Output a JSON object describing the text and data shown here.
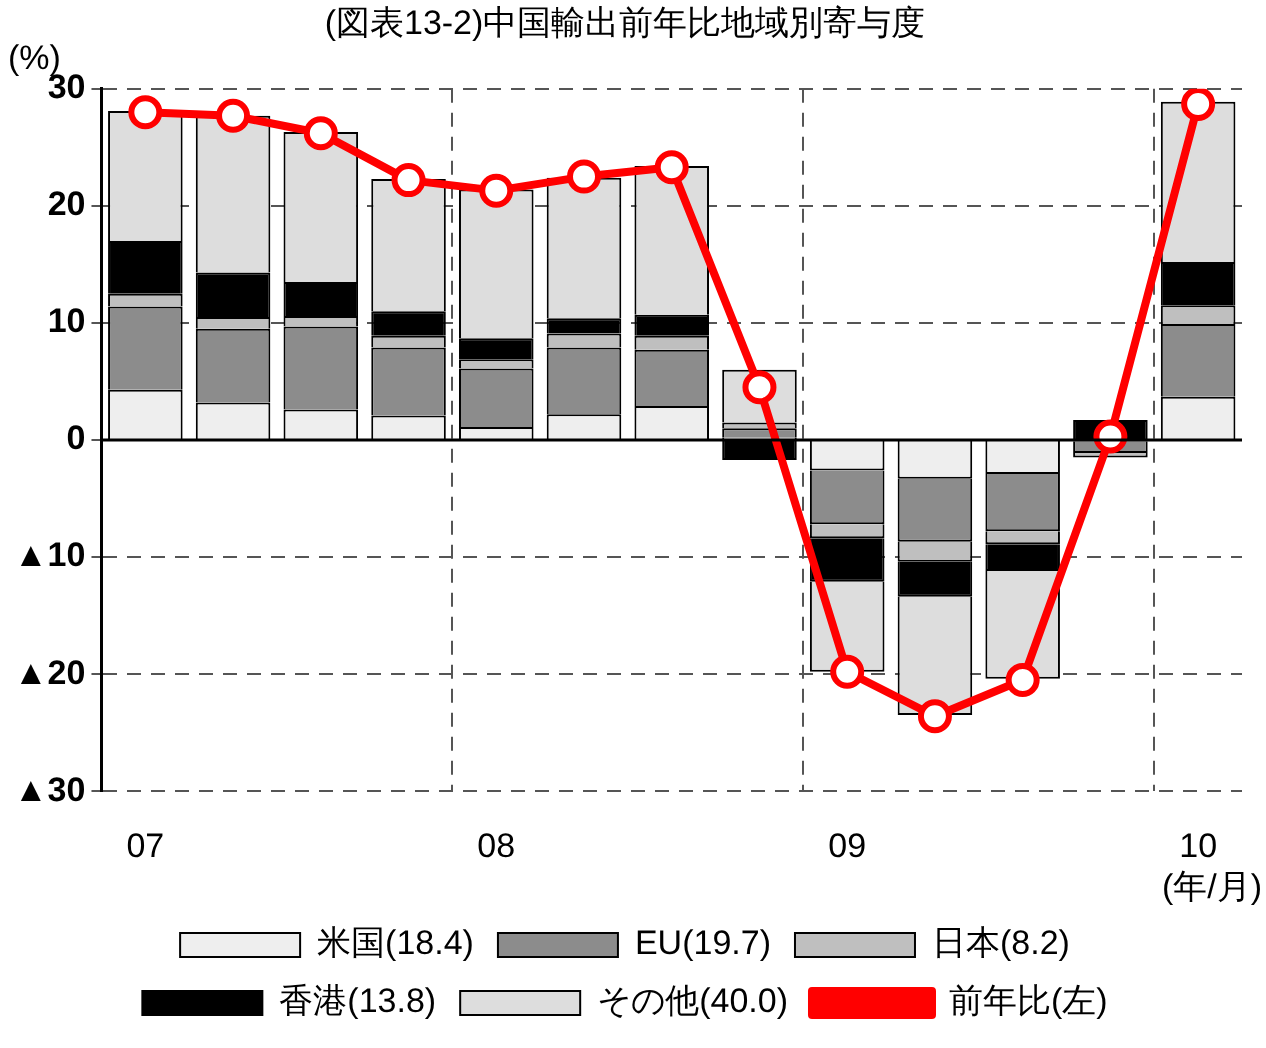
{
  "chart_data": {
    "type": "bar",
    "title": "(図表13-2)中国輸出前年比地域別寄与度",
    "ylabel": "(%)",
    "xlabel": "(年/月)",
    "categories": [
      "07",
      null,
      null,
      null,
      "08",
      null,
      null,
      null,
      "09",
      null,
      null,
      null,
      "10"
    ],
    "stacked": true,
    "ylim": [
      -30,
      30
    ],
    "yticks": [
      {
        "value": -30,
        "label": "▲30"
      },
      {
        "value": -20,
        "label": "▲20"
      },
      {
        "value": -10,
        "label": "▲10"
      },
      0,
      10,
      20,
      30
    ],
    "grid": true,
    "legend": "bottom",
    "marker": "circle",
    "series": [
      {
        "name": "米国(18.4)",
        "color": "#eeeeee",
        "values": [
          4.3,
          3.2,
          2.6,
          2.1,
          1.1,
          2.2,
          2.9,
          0.2,
          -2.6,
          -3.3,
          -2.9,
          -0.1,
          3.7
        ]
      },
      {
        "name": "EU(19.7)",
        "color": "#8c8c8c",
        "values": [
          7.1,
          6.3,
          7.1,
          5.8,
          5.0,
          5.7,
          4.8,
          0.8,
          -4.6,
          -5.4,
          -4.9,
          -1.0,
          6.2
        ]
      },
      {
        "name": "日本(8.2)",
        "color": "#bfbfbf",
        "values": [
          1.1,
          1.0,
          0.9,
          1.0,
          0.8,
          1.2,
          1.2,
          0.5,
          -1.2,
          -1.7,
          -1.1,
          -0.4,
          1.6
        ]
      },
      {
        "name": "香港(13.8)",
        "color": "#000000",
        "values": [
          4.5,
          3.8,
          2.9,
          2.1,
          1.8,
          1.3,
          1.8,
          -1.7,
          -3.7,
          -3.0,
          -2.3,
          1.7,
          3.7
        ]
      },
      {
        "name": "その他(40.0)",
        "color": "#dddddd",
        "values": [
          11.1,
          13.4,
          12.8,
          11.3,
          12.7,
          12.0,
          12.7,
          4.5,
          -7.7,
          -10.1,
          -9.2,
          null,
          13.7
        ]
      },
      {
        "name": "前年比(左)",
        "type": "line",
        "color": "#ff0000",
        "values": [
          28.0,
          27.7,
          26.2,
          22.2,
          21.3,
          22.5,
          23.3,
          4.5,
          -19.8,
          -23.6,
          -20.5,
          0.3,
          28.7
        ]
      }
    ]
  }
}
